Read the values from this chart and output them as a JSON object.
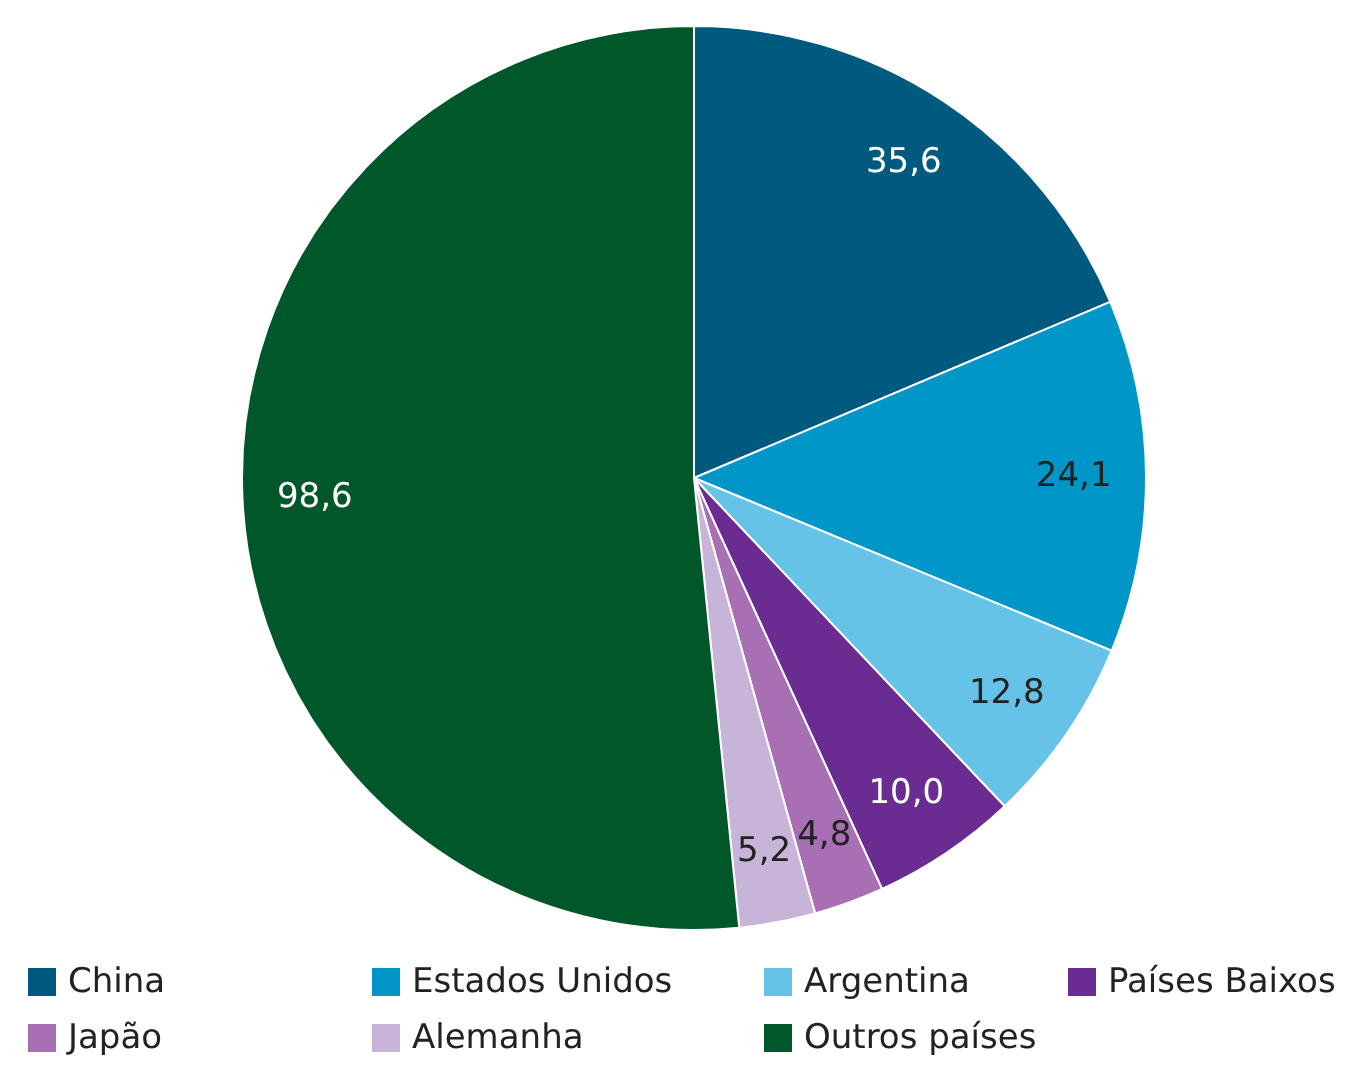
{
  "chart_data": {
    "type": "pie",
    "categories": [
      "China",
      "Estados Unidos",
      "Argentina",
      "Países Baixos",
      "Japão",
      "Alemanha",
      "Outros países"
    ],
    "values": [
      35.6,
      24.1,
      12.8,
      10.0,
      4.8,
      5.2,
      98.6
    ],
    "colors": [
      "#005a7f",
      "#0096c8",
      "#64c3e6",
      "#6a2c91",
      "#a86fb5",
      "#c9b4d9",
      "#00582a"
    ],
    "value_labels": [
      "35,6",
      "24,1",
      "12,8",
      "10,0",
      "4,8",
      "5,2",
      "98,6"
    ],
    "legend": "bottom"
  }
}
